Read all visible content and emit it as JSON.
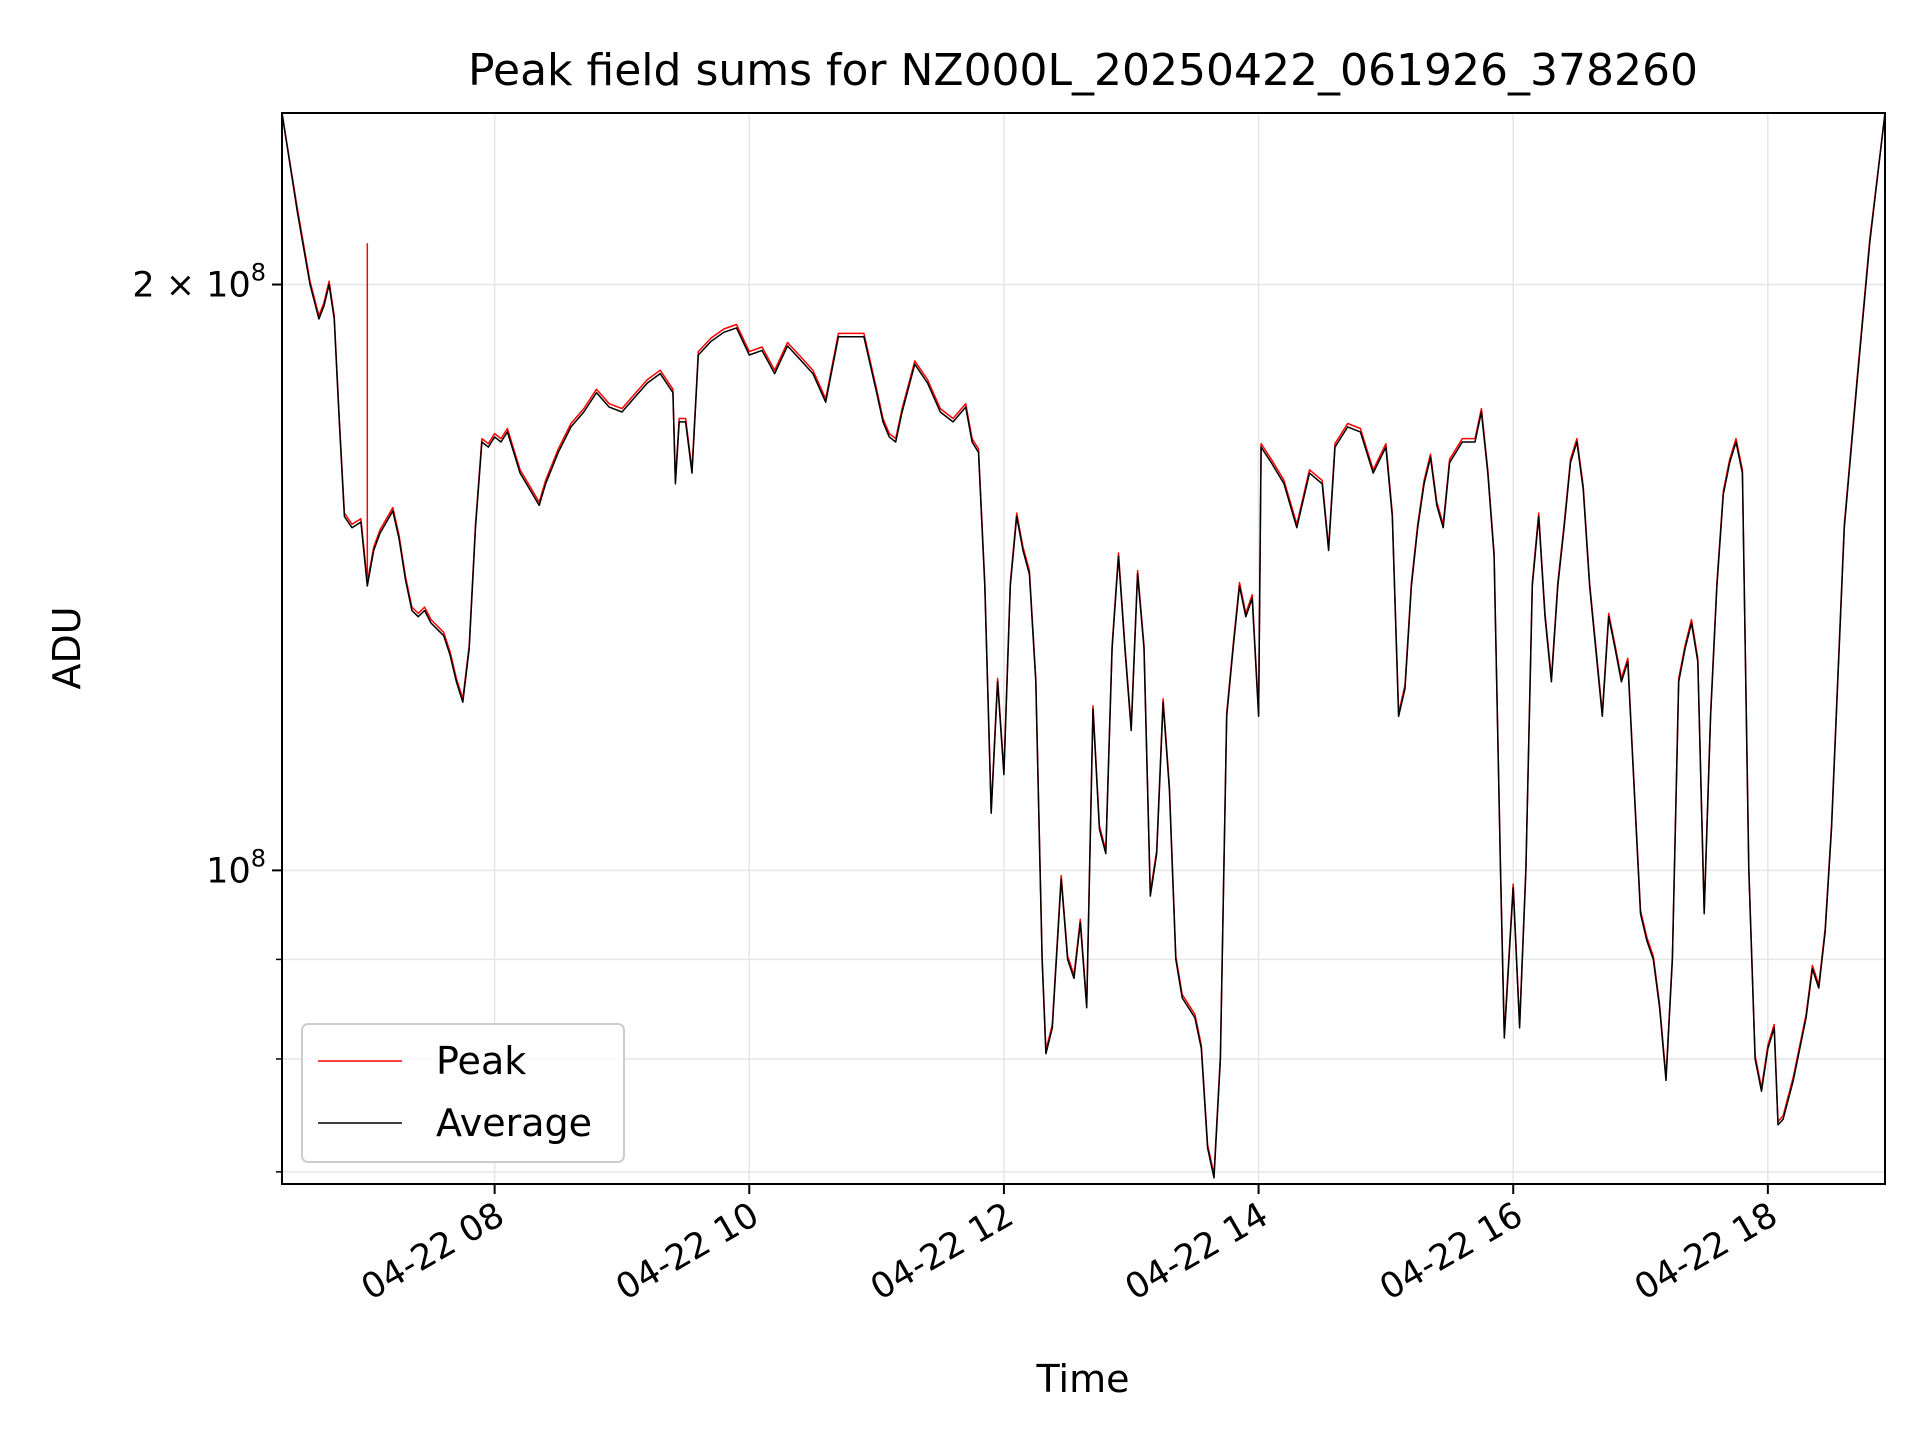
{
  "chart_data": {
    "type": "line",
    "title": "Peak field sums for NZ000L_20250422_061926_378260",
    "xlabel": "Time",
    "ylabel": "ADU",
    "yscale": "log",
    "ylim": [
      69000000,
      245000000
    ],
    "xlim_hours": [
      6.33,
      18.92
    ],
    "x_ticks": [
      {
        "value": 8,
        "label": "04-22 08"
      },
      {
        "value": 10,
        "label": "04-22 10"
      },
      {
        "value": 12,
        "label": "04-22 12"
      },
      {
        "value": 14,
        "label": "04-22 14"
      },
      {
        "value": 16,
        "label": "04-22 16"
      },
      {
        "value": 18,
        "label": "04-22 18"
      }
    ],
    "y_ticks_major": [
      {
        "value": 100000000,
        "base": "10",
        "exp": "8",
        "mantissa": ""
      },
      {
        "value": 200000000,
        "base": "10",
        "exp": "8",
        "mantissa": "2 × "
      }
    ],
    "y_ticks_minor": [
      70000000,
      80000000,
      90000000
    ],
    "grid": true,
    "legend": {
      "position": "lower-left",
      "entries": [
        "Peak",
        "Average"
      ]
    },
    "colors": {
      "Peak": "#ff0000",
      "Average": "#000000",
      "grid": "#e6e6e6"
    },
    "x_unit": "hours on 2025-04-22",
    "series": [
      {
        "name": "Average",
        "points": [
          [
            6.33,
            245000000.0
          ],
          [
            6.45,
            218000000.0
          ],
          [
            6.55,
            200000000.0
          ],
          [
            6.62,
            192000000.0
          ],
          [
            6.66,
            195000000.0
          ],
          [
            6.7,
            200000000.0
          ],
          [
            6.74,
            192000000.0
          ],
          [
            6.78,
            170000000.0
          ],
          [
            6.82,
            152000000.0
          ],
          [
            6.88,
            150000000.0
          ],
          [
            6.95,
            151000000.0
          ],
          [
            7.0,
            140000000.0
          ],
          [
            7.05,
            146000000.0
          ],
          [
            7.1,
            149000000.0
          ],
          [
            7.15,
            151000000.0
          ],
          [
            7.2,
            153000000.0
          ],
          [
            7.25,
            148000000.0
          ],
          [
            7.3,
            141000000.0
          ],
          [
            7.35,
            136000000.0
          ],
          [
            7.4,
            135000000.0
          ],
          [
            7.45,
            136000000.0
          ],
          [
            7.5,
            134000000.0
          ],
          [
            7.55,
            133000000.0
          ],
          [
            7.6,
            132000000.0
          ],
          [
            7.65,
            129000000.0
          ],
          [
            7.7,
            125000000.0
          ],
          [
            7.75,
            122000000.0
          ],
          [
            7.8,
            130000000.0
          ],
          [
            7.85,
            150000000.0
          ],
          [
            7.9,
            166000000.0
          ],
          [
            7.95,
            165000000.0
          ],
          [
            8.0,
            167000000.0
          ],
          [
            8.05,
            166000000.0
          ],
          [
            8.1,
            168000000.0
          ],
          [
            8.2,
            160000000.0
          ],
          [
            8.3,
            156000000.0
          ],
          [
            8.35,
            154000000.0
          ],
          [
            8.4,
            158000000.0
          ],
          [
            8.5,
            164000000.0
          ],
          [
            8.6,
            169000000.0
          ],
          [
            8.7,
            172000000.0
          ],
          [
            8.8,
            176000000.0
          ],
          [
            8.9,
            173000000.0
          ],
          [
            9.0,
            172000000.0
          ],
          [
            9.1,
            175000000.0
          ],
          [
            9.2,
            178000000.0
          ],
          [
            9.3,
            180000000.0
          ],
          [
            9.4,
            176000000.0
          ],
          [
            9.42,
            158000000.0
          ],
          [
            9.45,
            170000000.0
          ],
          [
            9.5,
            170000000.0
          ],
          [
            9.55,
            160000000.0
          ],
          [
            9.6,
            184000000.0
          ],
          [
            9.7,
            187000000.0
          ],
          [
            9.8,
            189000000.0
          ],
          [
            9.9,
            190000000.0
          ],
          [
            10.0,
            184000000.0
          ],
          [
            10.1,
            185000000.0
          ],
          [
            10.2,
            180000000.0
          ],
          [
            10.3,
            186000000.0
          ],
          [
            10.4,
            183000000.0
          ],
          [
            10.5,
            180000000.0
          ],
          [
            10.6,
            174000000.0
          ],
          [
            10.7,
            188000000.0
          ],
          [
            10.8,
            188000000.0
          ],
          [
            10.9,
            188000000.0
          ],
          [
            11.0,
            176000000.0
          ],
          [
            11.05,
            170000000.0
          ],
          [
            11.1,
            167000000.0
          ],
          [
            11.15,
            166000000.0
          ],
          [
            11.2,
            172000000.0
          ],
          [
            11.3,
            182000000.0
          ],
          [
            11.4,
            178000000.0
          ],
          [
            11.5,
            172000000.0
          ],
          [
            11.6,
            170000000.0
          ],
          [
            11.7,
            173000000.0
          ],
          [
            11.75,
            166000000.0
          ],
          [
            11.8,
            164000000.0
          ],
          [
            11.85,
            140000000.0
          ],
          [
            11.9,
            107000000.0
          ],
          [
            11.95,
            125000000.0
          ],
          [
            12.0,
            112000000.0
          ],
          [
            12.05,
            140000000.0
          ],
          [
            12.1,
            152000000.0
          ],
          [
            12.15,
            146000000.0
          ],
          [
            12.2,
            142000000.0
          ],
          [
            12.25,
            125000000.0
          ],
          [
            12.3,
            90000000.0
          ],
          [
            12.33,
            80500000.0
          ],
          [
            12.38,
            83000000.0
          ],
          [
            12.45,
            99000000.0
          ],
          [
            12.5,
            90000000.0
          ],
          [
            12.55,
            88000000.0
          ],
          [
            12.6,
            94000000.0
          ],
          [
            12.65,
            85000000.0
          ],
          [
            12.7,
            121000000.0
          ],
          [
            12.75,
            105000000.0
          ],
          [
            12.8,
            102000000.0
          ],
          [
            12.85,
            130000000.0
          ],
          [
            12.9,
            145000000.0
          ],
          [
            12.95,
            130000000.0
          ],
          [
            13.0,
            118000000.0
          ],
          [
            13.05,
            142000000.0
          ],
          [
            13.1,
            130000000.0
          ],
          [
            13.15,
            97000000.0
          ],
          [
            13.2,
            102000000.0
          ],
          [
            13.25,
            122000000.0
          ],
          [
            13.3,
            110000000.0
          ],
          [
            13.35,
            90000000.0
          ],
          [
            13.4,
            86000000.0
          ],
          [
            13.5,
            84000000.0
          ],
          [
            13.55,
            81000000.0
          ],
          [
            13.6,
            72000000.0
          ],
          [
            13.65,
            69500000.0
          ],
          [
            13.7,
            80000000.0
          ],
          [
            13.75,
            120000000.0
          ],
          [
            13.8,
            130000000.0
          ],
          [
            13.85,
            140000000.0
          ],
          [
            13.9,
            135000000.0
          ],
          [
            13.95,
            138000000.0
          ],
          [
            14.0,
            120000000.0
          ],
          [
            14.02,
            165000000.0
          ],
          [
            14.1,
            162000000.0
          ],
          [
            14.2,
            158000000.0
          ],
          [
            14.3,
            150000000.0
          ],
          [
            14.4,
            160000000.0
          ],
          [
            14.5,
            158000000.0
          ],
          [
            14.55,
            146000000.0
          ],
          [
            14.6,
            165000000.0
          ],
          [
            14.7,
            169000000.0
          ],
          [
            14.8,
            168000000.0
          ],
          [
            14.9,
            160000000.0
          ],
          [
            15.0,
            165000000.0
          ],
          [
            15.05,
            152000000.0
          ],
          [
            15.1,
            120000000.0
          ],
          [
            15.15,
            124000000.0
          ],
          [
            15.2,
            140000000.0
          ],
          [
            15.25,
            150000000.0
          ],
          [
            15.3,
            158000000.0
          ],
          [
            15.35,
            163000000.0
          ],
          [
            15.4,
            154000000.0
          ],
          [
            15.45,
            150000000.0
          ],
          [
            15.5,
            162000000.0
          ],
          [
            15.6,
            166000000.0
          ],
          [
            15.7,
            166000000.0
          ],
          [
            15.75,
            172000000.0
          ],
          [
            15.8,
            160000000.0
          ],
          [
            15.85,
            145000000.0
          ],
          [
            15.9,
            100000000.0
          ],
          [
            15.93,
            82000000.0
          ],
          [
            16.0,
            98000000.0
          ],
          [
            16.05,
            83000000.0
          ],
          [
            16.1,
            100000000.0
          ],
          [
            16.15,
            140000000.0
          ],
          [
            16.2,
            152000000.0
          ],
          [
            16.25,
            135000000.0
          ],
          [
            16.3,
            125000000.0
          ],
          [
            16.35,
            140000000.0
          ],
          [
            16.4,
            150000000.0
          ],
          [
            16.45,
            162000000.0
          ],
          [
            16.5,
            166000000.0
          ],
          [
            16.55,
            157000000.0
          ],
          [
            16.6,
            140000000.0
          ],
          [
            16.7,
            120000000.0
          ],
          [
            16.75,
            135000000.0
          ],
          [
            16.8,
            130000000.0
          ],
          [
            16.85,
            125000000.0
          ],
          [
            16.9,
            128000000.0
          ],
          [
            16.95,
            110000000.0
          ],
          [
            17.0,
            95000000.0
          ],
          [
            17.05,
            92000000.0
          ],
          [
            17.1,
            90000000.0
          ],
          [
            17.15,
            85000000.0
          ],
          [
            17.2,
            78000000.0
          ],
          [
            17.25,
            90000000.0
          ],
          [
            17.3,
            125000000.0
          ],
          [
            17.35,
            130000000.0
          ],
          [
            17.4,
            134000000.0
          ],
          [
            17.45,
            128000000.0
          ],
          [
            17.5,
            95000000.0
          ],
          [
            17.55,
            120000000.0
          ],
          [
            17.6,
            140000000.0
          ],
          [
            17.65,
            156000000.0
          ],
          [
            17.7,
            162000000.0
          ],
          [
            17.75,
            166000000.0
          ],
          [
            17.8,
            160000000.0
          ],
          [
            17.85,
            100000000.0
          ],
          [
            17.9,
            80000000.0
          ],
          [
            17.95,
            77000000.0
          ],
          [
            18.0,
            81000000.0
          ],
          [
            18.05,
            83000000.0
          ],
          [
            18.08,
            74000000.0
          ],
          [
            18.12,
            74500000.0
          ],
          [
            18.2,
            78000000.0
          ],
          [
            18.3,
            84000000.0
          ],
          [
            18.35,
            89000000.0
          ],
          [
            18.4,
            87000000.0
          ],
          [
            18.45,
            93000000.0
          ],
          [
            18.5,
            105000000.0
          ],
          [
            18.6,
            150000000.0
          ],
          [
            18.7,
            178000000.0
          ],
          [
            18.8,
            210000000.0
          ],
          [
            18.92,
            245000000.0
          ]
        ]
      },
      {
        "name": "Peak",
        "follows": "Average",
        "spike": {
          "x": 7.0,
          "y": 210000000.0
        }
      }
    ]
  }
}
